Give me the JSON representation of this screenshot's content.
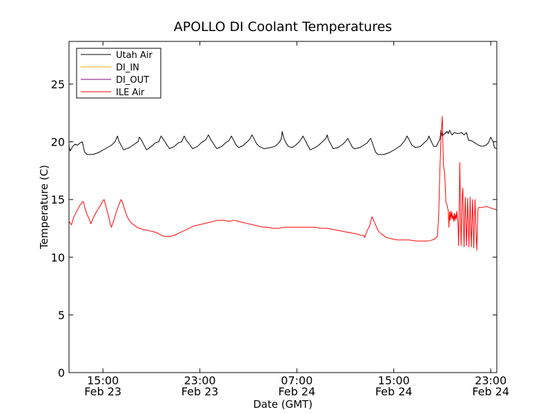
{
  "chart_data": {
    "type": "line",
    "title": "APOLLO DI Coolant Temperatures",
    "xlabel": "Date (GMT)",
    "ylabel": "Temperature (C)",
    "xlim_hours": [
      12.2,
      47.5
    ],
    "ylim": [
      0,
      28.7
    ],
    "x_ticks": [
      {
        "hour": 15,
        "time": "15:00",
        "date": "Feb 23"
      },
      {
        "hour": 23,
        "time": "23:00",
        "date": "Feb 23"
      },
      {
        "hour": 31,
        "time": "07:00",
        "date": "Feb 24"
      },
      {
        "hour": 39,
        "time": "15:00",
        "date": "Feb 24"
      },
      {
        "hour": 47,
        "time": "23:00",
        "date": "Feb 24"
      }
    ],
    "y_ticks": [
      0,
      5,
      10,
      15,
      20,
      25
    ],
    "legend_position": "top-left",
    "series": [
      {
        "name": "Utah Air",
        "color": "#000000",
        "points": [
          [
            12.2,
            19.6
          ],
          [
            12.3,
            19.2
          ],
          [
            12.5,
            19.6
          ],
          [
            12.7,
            19.8
          ],
          [
            12.9,
            19.7
          ],
          [
            13.1,
            19.9
          ],
          [
            13.3,
            20.0
          ],
          [
            13.4,
            19.5
          ],
          [
            13.5,
            19.1
          ],
          [
            13.7,
            18.9
          ],
          [
            14.2,
            18.9
          ],
          [
            14.7,
            19.1
          ],
          [
            15.2,
            19.4
          ],
          [
            15.7,
            19.7
          ],
          [
            16.0,
            20.0
          ],
          [
            16.2,
            20.5
          ],
          [
            16.3,
            20.1
          ],
          [
            16.5,
            19.7
          ],
          [
            16.7,
            19.3
          ],
          [
            17.2,
            19.5
          ],
          [
            17.6,
            19.8
          ],
          [
            17.9,
            20.0
          ],
          [
            18.0,
            20.4
          ],
          [
            18.1,
            20.3
          ],
          [
            18.3,
            19.9
          ],
          [
            18.5,
            19.5
          ],
          [
            18.6,
            19.3
          ],
          [
            19.0,
            19.6
          ],
          [
            19.3,
            19.9
          ],
          [
            19.6,
            20.0
          ],
          [
            19.8,
            20.5
          ],
          [
            20.0,
            20.2
          ],
          [
            20.3,
            19.7
          ],
          [
            20.5,
            19.4
          ],
          [
            20.9,
            19.6
          ],
          [
            21.2,
            19.9
          ],
          [
            21.5,
            20.0
          ],
          [
            21.7,
            20.5
          ],
          [
            21.9,
            20.1
          ],
          [
            22.2,
            19.7
          ],
          [
            22.4,
            19.4
          ],
          [
            22.8,
            19.6
          ],
          [
            23.1,
            19.9
          ],
          [
            23.5,
            20.2
          ],
          [
            23.7,
            20.6
          ],
          [
            23.9,
            20.2
          ],
          [
            24.2,
            19.7
          ],
          [
            24.4,
            19.4
          ],
          [
            24.8,
            19.6
          ],
          [
            25.1,
            19.9
          ],
          [
            25.4,
            20.1
          ],
          [
            25.6,
            20.5
          ],
          [
            25.8,
            20.1
          ],
          [
            26.0,
            19.7
          ],
          [
            26.2,
            19.5
          ],
          [
            26.6,
            19.7
          ],
          [
            26.9,
            20.0
          ],
          [
            27.1,
            20.2
          ],
          [
            27.3,
            20.6
          ],
          [
            27.5,
            20.2
          ],
          [
            27.7,
            19.8
          ],
          [
            27.9,
            19.6
          ],
          [
            28.3,
            19.4
          ],
          [
            28.8,
            19.5
          ],
          [
            29.2,
            19.6
          ],
          [
            29.5,
            19.9
          ],
          [
            29.7,
            20.2
          ],
          [
            29.8,
            20.9
          ],
          [
            29.9,
            20.4
          ],
          [
            30.1,
            19.9
          ],
          [
            30.3,
            19.6
          ],
          [
            30.6,
            19.5
          ],
          [
            30.9,
            19.7
          ],
          [
            31.2,
            20.0
          ],
          [
            31.4,
            20.3
          ],
          [
            31.5,
            20.5
          ],
          [
            31.7,
            20.1
          ],
          [
            31.9,
            19.7
          ],
          [
            32.1,
            19.3
          ],
          [
            32.5,
            19.5
          ],
          [
            32.8,
            19.7
          ],
          [
            32.9,
            19.8
          ],
          [
            33.0,
            19.9
          ],
          [
            33.2,
            20.1
          ],
          [
            33.4,
            20.3
          ],
          [
            33.5,
            20.6
          ],
          [
            33.6,
            20.2
          ],
          [
            33.8,
            19.8
          ],
          [
            34.0,
            19.4
          ],
          [
            34.4,
            19.5
          ],
          [
            34.8,
            19.8
          ],
          [
            35.0,
            20.0
          ],
          [
            35.2,
            20.3
          ],
          [
            35.4,
            19.9
          ],
          [
            35.6,
            19.5
          ],
          [
            35.8,
            19.4
          ],
          [
            36.2,
            19.5
          ],
          [
            36.5,
            19.7
          ],
          [
            36.8,
            19.9
          ],
          [
            37.0,
            20.2
          ],
          [
            37.1,
            20.3
          ],
          [
            37.3,
            19.7
          ],
          [
            37.5,
            19.1
          ],
          [
            37.7,
            18.9
          ],
          [
            38.2,
            18.9
          ],
          [
            38.7,
            19.1
          ],
          [
            39.2,
            19.4
          ],
          [
            39.6,
            19.7
          ],
          [
            39.9,
            20.1
          ],
          [
            40.1,
            20.5
          ],
          [
            40.3,
            20.1
          ],
          [
            40.5,
            19.7
          ],
          [
            40.8,
            19.5
          ],
          [
            41.2,
            19.6
          ],
          [
            41.5,
            19.9
          ],
          [
            41.8,
            20.2
          ],
          [
            41.9,
            20.5
          ],
          [
            42.1,
            20.0
          ],
          [
            42.3,
            19.6
          ],
          [
            42.5,
            19.6
          ],
          [
            42.6,
            19.8
          ],
          [
            42.8,
            20.2
          ],
          [
            42.9,
            21.0
          ],
          [
            43.0,
            20.5
          ],
          [
            43.2,
            20.7
          ],
          [
            43.4,
            20.9
          ],
          [
            43.5,
            20.7
          ],
          [
            43.6,
            21.0
          ],
          [
            43.8,
            20.6
          ],
          [
            44.0,
            20.8
          ],
          [
            44.3,
            20.7
          ],
          [
            44.6,
            20.8
          ],
          [
            44.8,
            20.6
          ],
          [
            45.0,
            20.8
          ],
          [
            45.1,
            20.4
          ],
          [
            45.2,
            20.1
          ],
          [
            45.4,
            20.1
          ],
          [
            45.7,
            19.9
          ],
          [
            46.0,
            19.7
          ],
          [
            46.3,
            19.6
          ],
          [
            46.6,
            19.7
          ],
          [
            46.8,
            19.9
          ],
          [
            47.0,
            20.4
          ],
          [
            47.2,
            20.0
          ],
          [
            47.3,
            19.5
          ],
          [
            47.5,
            19.4
          ]
        ]
      },
      {
        "name": "DI_IN",
        "color": "#ffa500",
        "points": []
      },
      {
        "name": "DI_OUT",
        "color": "#800080",
        "points": []
      },
      {
        "name": "ILE Air",
        "color": "#ff0000",
        "points": [
          [
            12.2,
            13.1
          ],
          [
            12.4,
            12.8
          ],
          [
            12.6,
            13.5
          ],
          [
            12.9,
            14.1
          ],
          [
            13.1,
            14.5
          ],
          [
            13.3,
            14.8
          ],
          [
            13.4,
            14.8
          ],
          [
            13.5,
            14.3
          ],
          [
            13.7,
            13.7
          ],
          [
            13.9,
            13.2
          ],
          [
            14.0,
            12.9
          ],
          [
            14.2,
            13.4
          ],
          [
            14.5,
            14.0
          ],
          [
            14.8,
            14.5
          ],
          [
            15.0,
            14.9
          ],
          [
            15.1,
            15.0
          ],
          [
            15.3,
            14.2
          ],
          [
            15.5,
            13.4
          ],
          [
            15.6,
            12.9
          ],
          [
            15.7,
            12.6
          ],
          [
            15.9,
            13.2
          ],
          [
            16.1,
            13.9
          ],
          [
            16.3,
            14.5
          ],
          [
            16.5,
            15.0
          ],
          [
            16.6,
            14.8
          ],
          [
            16.8,
            14.1
          ],
          [
            17.0,
            13.5
          ],
          [
            17.3,
            13.0
          ],
          [
            17.8,
            12.6
          ],
          [
            18.3,
            12.4
          ],
          [
            18.8,
            12.3
          ],
          [
            19.2,
            12.2
          ],
          [
            19.5,
            12.1
          ],
          [
            19.8,
            11.9
          ],
          [
            20.1,
            11.8
          ],
          [
            20.5,
            11.8
          ],
          [
            20.9,
            11.9
          ],
          [
            21.3,
            12.1
          ],
          [
            21.7,
            12.3
          ],
          [
            22.1,
            12.5
          ],
          [
            22.5,
            12.7
          ],
          [
            22.9,
            12.8
          ],
          [
            23.3,
            12.9
          ],
          [
            23.7,
            13.0
          ],
          [
            24.1,
            13.1
          ],
          [
            24.5,
            13.2
          ],
          [
            25.0,
            13.2
          ],
          [
            25.4,
            13.1
          ],
          [
            25.8,
            13.2
          ],
          [
            26.2,
            13.1
          ],
          [
            26.6,
            13.0
          ],
          [
            27.0,
            12.9
          ],
          [
            27.4,
            12.8
          ],
          [
            27.8,
            12.7
          ],
          [
            28.2,
            12.6
          ],
          [
            28.6,
            12.6
          ],
          [
            29.0,
            12.5
          ],
          [
            29.5,
            12.5
          ],
          [
            30.0,
            12.6
          ],
          [
            30.5,
            12.6
          ],
          [
            31.0,
            12.6
          ],
          [
            31.5,
            12.6
          ],
          [
            32.0,
            12.6
          ],
          [
            32.5,
            12.6
          ],
          [
            33.0,
            12.5
          ],
          [
            33.5,
            12.5
          ],
          [
            34.0,
            12.4
          ],
          [
            34.5,
            12.3
          ],
          [
            35.0,
            12.2
          ],
          [
            35.5,
            12.1
          ],
          [
            36.0,
            12.0
          ],
          [
            36.3,
            11.9
          ],
          [
            36.5,
            11.9
          ],
          [
            36.6,
            11.7
          ],
          [
            36.7,
            12.0
          ],
          [
            36.8,
            12.3
          ],
          [
            37.0,
            12.7
          ],
          [
            37.1,
            13.1
          ],
          [
            37.2,
            13.5
          ],
          [
            37.3,
            13.3
          ],
          [
            37.5,
            12.8
          ],
          [
            37.7,
            12.3
          ],
          [
            38.0,
            12.0
          ],
          [
            38.4,
            11.7
          ],
          [
            38.8,
            11.6
          ],
          [
            39.3,
            11.5
          ],
          [
            39.8,
            11.5
          ],
          [
            40.3,
            11.5
          ],
          [
            40.8,
            11.4
          ],
          [
            41.3,
            11.4
          ],
          [
            41.8,
            11.4
          ],
          [
            42.2,
            11.5
          ],
          [
            42.4,
            11.6
          ],
          [
            42.6,
            11.8
          ],
          [
            42.7,
            13.5
          ],
          [
            42.8,
            17.5
          ],
          [
            42.9,
            20.5
          ],
          [
            43.0,
            22.2
          ],
          [
            43.05,
            20.0
          ],
          [
            43.1,
            18.0
          ],
          [
            43.2,
            17.2
          ],
          [
            43.25,
            16.0
          ],
          [
            43.3,
            14.8
          ],
          [
            43.4,
            14.5
          ],
          [
            43.5,
            14.0
          ],
          [
            43.55,
            12.6
          ],
          [
            43.6,
            13.9
          ],
          [
            43.65,
            13.2
          ],
          [
            43.7,
            14.0
          ],
          [
            43.75,
            13.4
          ],
          [
            43.8,
            13.9
          ],
          [
            43.85,
            13.3
          ],
          [
            43.9,
            13.6
          ],
          [
            43.95,
            13.1
          ],
          [
            44.0,
            13.8
          ],
          [
            44.05,
            13.2
          ],
          [
            44.1,
            13.7
          ],
          [
            44.15,
            13.3
          ],
          [
            44.2,
            14.0
          ],
          [
            44.3,
            12.9
          ],
          [
            44.35,
            11.0
          ],
          [
            44.4,
            14.5
          ],
          [
            44.45,
            18.2
          ],
          [
            44.5,
            14.5
          ],
          [
            44.55,
            11.0
          ],
          [
            44.6,
            13.0
          ],
          [
            44.65,
            15.3
          ],
          [
            44.7,
            16.0
          ],
          [
            44.75,
            13.0
          ],
          [
            44.8,
            10.9
          ],
          [
            44.85,
            13.5
          ],
          [
            44.9,
            15.2
          ],
          [
            44.95,
            13.0
          ],
          [
            45.0,
            11.0
          ],
          [
            45.05,
            13.2
          ],
          [
            45.1,
            15.1
          ],
          [
            45.15,
            12.8
          ],
          [
            45.2,
            10.9
          ],
          [
            45.25,
            13.0
          ],
          [
            45.3,
            15.2
          ],
          [
            45.35,
            12.8
          ],
          [
            45.4,
            10.9
          ],
          [
            45.45,
            13.2
          ],
          [
            45.5,
            15.0
          ],
          [
            45.55,
            12.5
          ],
          [
            45.6,
            10.8
          ],
          [
            45.65,
            12.8
          ],
          [
            45.7,
            15.0
          ],
          [
            45.8,
            12.0
          ],
          [
            45.85,
            10.6
          ],
          [
            45.9,
            12.5
          ],
          [
            45.95,
            14.2
          ],
          [
            46.0,
            14.3
          ],
          [
            46.3,
            14.3
          ],
          [
            46.6,
            14.4
          ],
          [
            46.9,
            14.3
          ],
          [
            47.2,
            14.2
          ],
          [
            47.5,
            14.1
          ]
        ]
      }
    ]
  }
}
